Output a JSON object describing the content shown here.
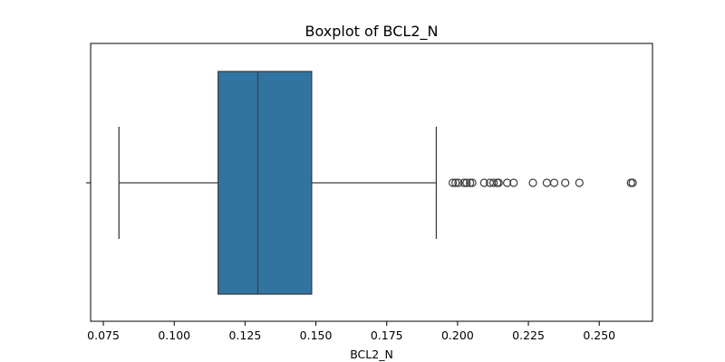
{
  "chart_data": {
    "type": "boxplot",
    "orientation": "horizontal",
    "title": "Boxplot of BCL2_N",
    "xlabel": "BCL2_N",
    "ylabel": "",
    "xlim": [
      0.0705,
      0.2688
    ],
    "xticks": [
      0.075,
      0.1,
      0.125,
      0.15,
      0.175,
      0.2,
      0.225,
      0.25
    ],
    "xtick_labels": [
      "0.075",
      "0.100",
      "0.125",
      "0.150",
      "0.175",
      "0.200",
      "0.225",
      "0.250"
    ],
    "grid": false,
    "colors": {
      "box_fill": "#3274a1",
      "lines": "#3d3d3d",
      "frame": "#000000"
    },
    "series": [
      {
        "whisker_low": 0.0805,
        "q1": 0.1155,
        "median": 0.1295,
        "q3": 0.1485,
        "whisker_high": 0.1925,
        "outliers": [
          0.1983,
          0.1993,
          0.2003,
          0.2023,
          0.2032,
          0.2044,
          0.2052,
          0.2094,
          0.2114,
          0.2127,
          0.214,
          0.2145,
          0.2175,
          0.2198,
          0.2266,
          0.2315,
          0.2341,
          0.238,
          0.243,
          0.2612,
          0.2618
        ]
      }
    ]
  }
}
